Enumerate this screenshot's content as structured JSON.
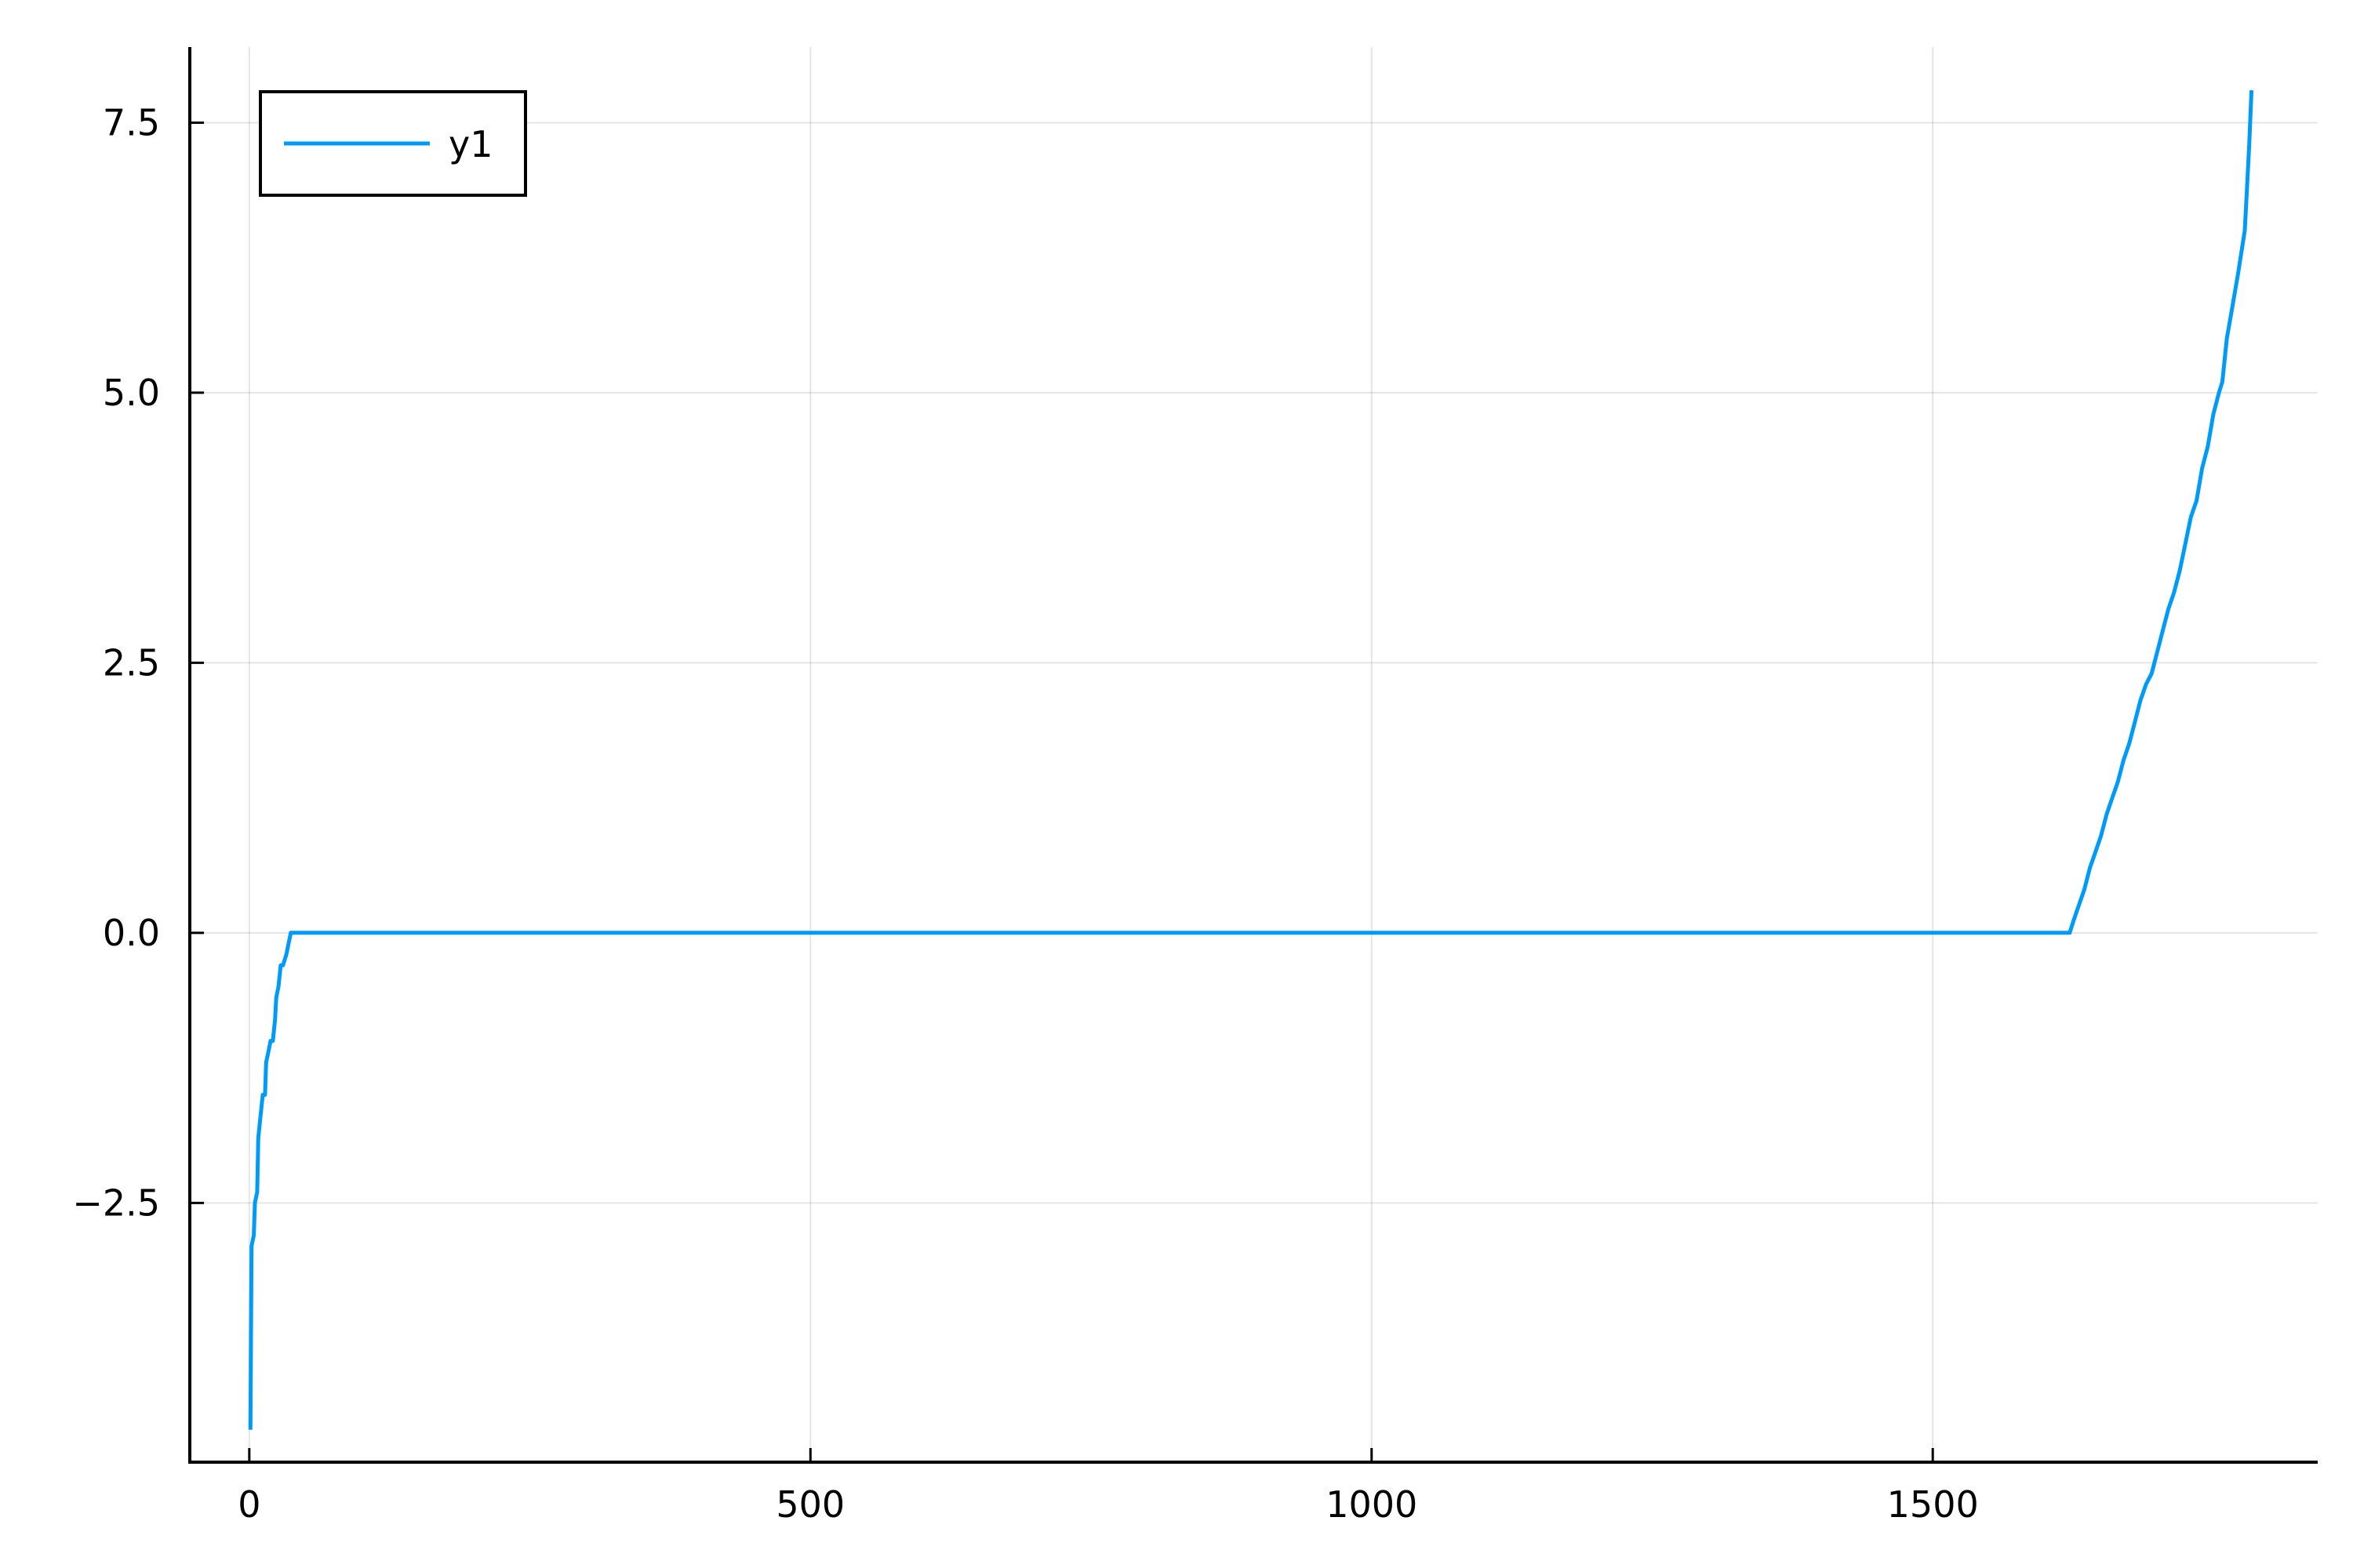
{
  "chart_data": {
    "type": "line",
    "title": "",
    "xlabel": "",
    "ylabel": "",
    "xlim": [
      -53,
      1843
    ],
    "ylim": [
      -4.9,
      8.2
    ],
    "grid": true,
    "legend_position": "top-left",
    "x_ticks": [
      0,
      500,
      1000,
      1500
    ],
    "x_tick_labels": [
      "0",
      "500",
      "1000",
      "1500"
    ],
    "y_ticks": [
      -2.5,
      0.0,
      2.5,
      5.0,
      7.5
    ],
    "y_tick_labels": [
      "−2.5",
      "0.0",
      "2.5",
      "5.0",
      "7.5"
    ],
    "series": [
      {
        "name": "y1",
        "color": "#009af9",
        "points": [
          [
            1,
            -4.6
          ],
          [
            2,
            -2.9
          ],
          [
            4,
            -2.8
          ],
          [
            5,
            -2.5
          ],
          [
            7,
            -2.4
          ],
          [
            8,
            -1.9
          ],
          [
            10,
            -1.7
          ],
          [
            12,
            -1.5
          ],
          [
            14,
            -1.5
          ],
          [
            15,
            -1.2
          ],
          [
            17,
            -1.1
          ],
          [
            19,
            -1.0
          ],
          [
            21,
            -1.0
          ],
          [
            23,
            -0.8
          ],
          [
            24,
            -0.6
          ],
          [
            26,
            -0.5
          ],
          [
            28,
            -0.3
          ],
          [
            30,
            -0.3
          ],
          [
            33,
            -0.2
          ],
          [
            35,
            -0.1
          ],
          [
            37,
            0.0
          ],
          [
            100,
            0.0
          ],
          [
            500,
            0.0
          ],
          [
            1000,
            0.0
          ],
          [
            1500,
            0.0
          ],
          [
            1622,
            0.0
          ],
          [
            1625,
            0.1
          ],
          [
            1630,
            0.25
          ],
          [
            1635,
            0.4
          ],
          [
            1640,
            0.6
          ],
          [
            1645,
            0.75
          ],
          [
            1650,
            0.9
          ],
          [
            1655,
            1.1
          ],
          [
            1660,
            1.25
          ],
          [
            1665,
            1.4
          ],
          [
            1670,
            1.6
          ],
          [
            1675,
            1.75
          ],
          [
            1680,
            1.95
          ],
          [
            1685,
            2.15
          ],
          [
            1690,
            2.3
          ],
          [
            1695,
            2.4
          ],
          [
            1700,
            2.6
          ],
          [
            1705,
            2.8
          ],
          [
            1710,
            3.0
          ],
          [
            1715,
            3.15
          ],
          [
            1720,
            3.35
          ],
          [
            1725,
            3.6
          ],
          [
            1730,
            3.85
          ],
          [
            1735,
            4.0
          ],
          [
            1740,
            4.3
          ],
          [
            1745,
            4.5
          ],
          [
            1750,
            4.8
          ],
          [
            1755,
            5.0
          ],
          [
            1758,
            5.1
          ],
          [
            1762,
            5.5
          ],
          [
            1767,
            5.8
          ],
          [
            1772,
            6.1
          ],
          [
            1775,
            6.3
          ],
          [
            1778,
            6.5
          ],
          [
            1780,
            6.9
          ],
          [
            1782,
            7.3
          ],
          [
            1784,
            7.8
          ]
        ]
      }
    ]
  }
}
